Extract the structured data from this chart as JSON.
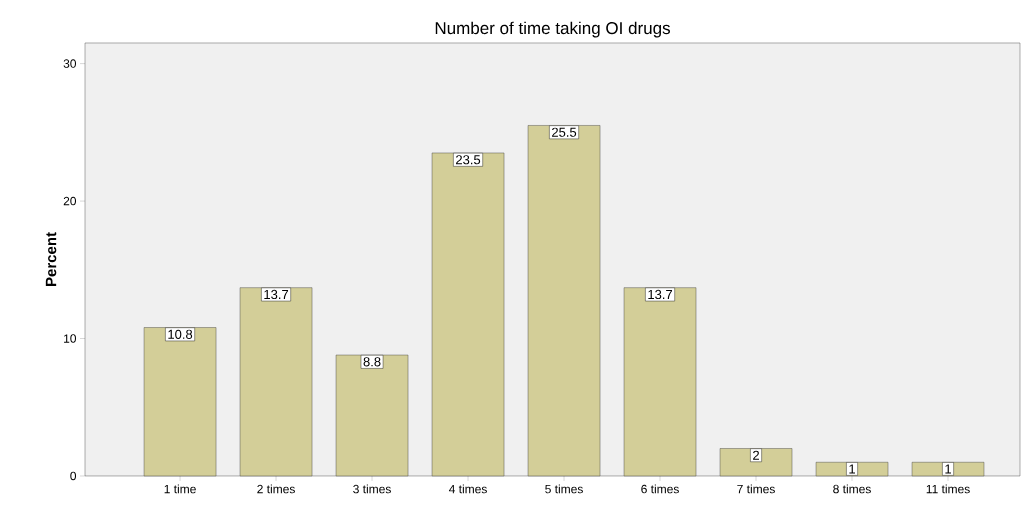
{
  "chart_data": {
    "type": "bar",
    "title": "Number of time taking OI drugs",
    "ylabel": "Percent",
    "categories": [
      "1 time",
      "2 times",
      "3 times",
      "4 times",
      "5 times",
      "6 times",
      "7 times",
      "8 times",
      "11 times"
    ],
    "values": [
      10.8,
      13.7,
      8.8,
      23.5,
      25.5,
      13.7,
      2,
      1,
      1
    ],
    "color": "#d3ce98",
    "ylim": [
      0,
      31.5
    ],
    "yticks": [
      0,
      10,
      20,
      30
    ],
    "grid": false,
    "data_labels": true
  }
}
